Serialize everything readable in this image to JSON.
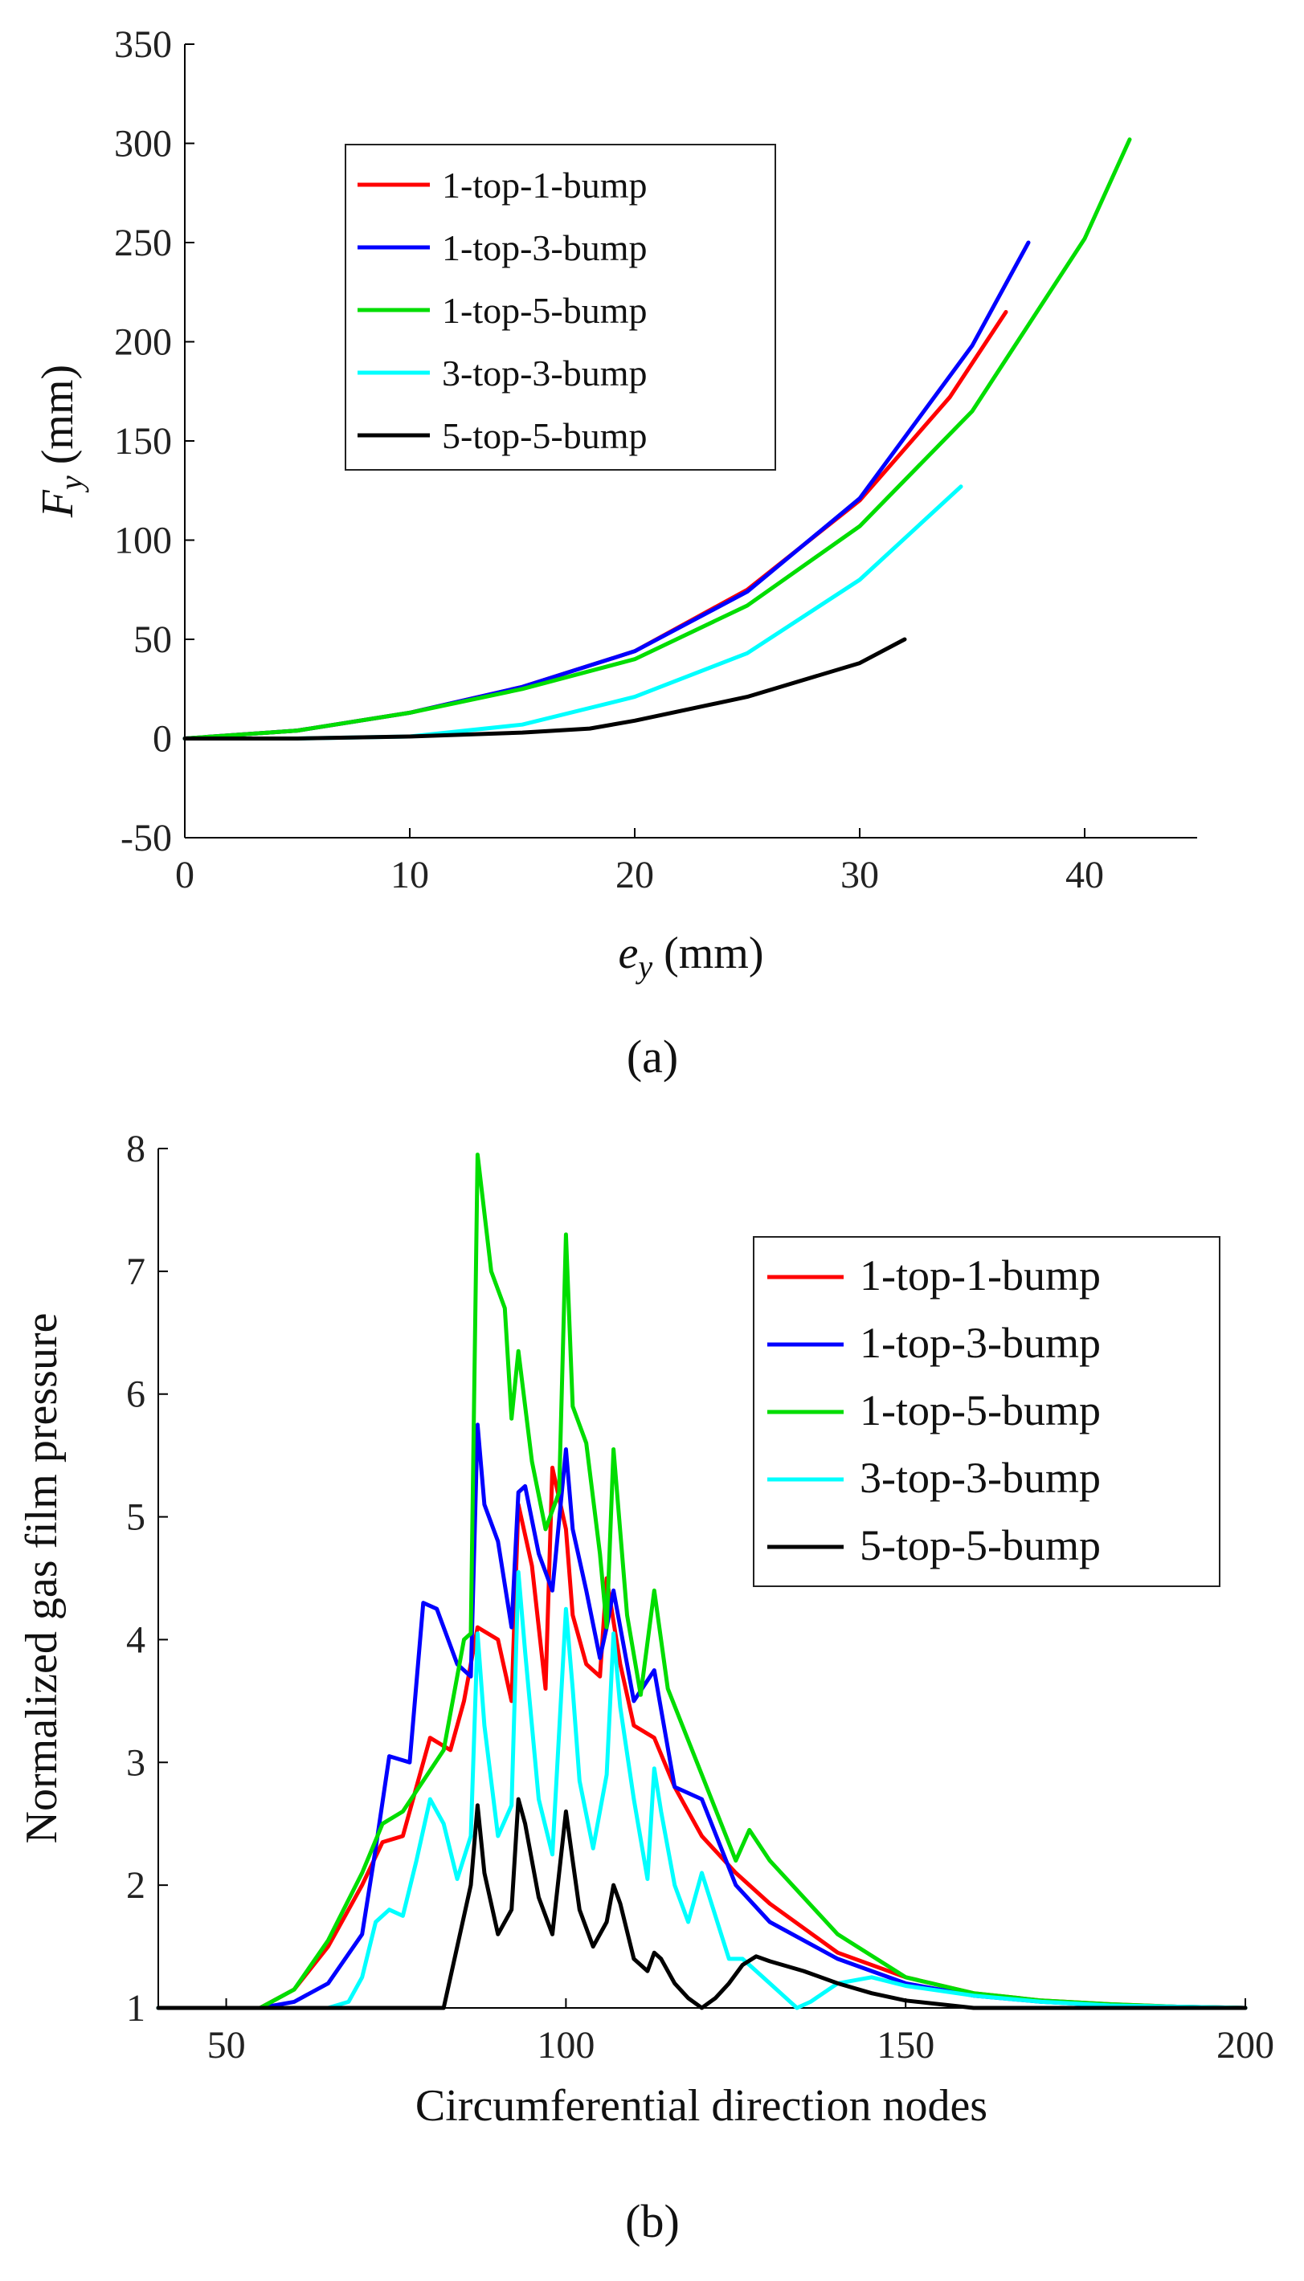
{
  "chart_data": [
    {
      "panel_label": "(a)",
      "type": "line",
      "title": "",
      "xlabel": {
        "main": "e",
        "sub": "y",
        "unit": " (mm)"
      },
      "ylabel": {
        "main": "F",
        "sub": "y",
        "unit": " (mm)"
      },
      "xlim": [
        0,
        45
      ],
      "ylim": [
        -50,
        350
      ],
      "xticks": [
        "0",
        "10",
        "20",
        "30",
        "40"
      ],
      "xtick_values": [
        0,
        10,
        20,
        30,
        40
      ],
      "yticks": [
        "-50",
        "0",
        "50",
        "100",
        "150",
        "200",
        "250",
        "300",
        "350"
      ],
      "ytick_values": [
        -50,
        0,
        50,
        100,
        150,
        200,
        250,
        300,
        350
      ],
      "grid": false,
      "legend_position": "top-left",
      "series": [
        {
          "name": "1-top-1-bump",
          "color": "#ff0000",
          "x": [
            0,
            5,
            10,
            15,
            20,
            25,
            30,
            34,
            36.5
          ],
          "y": [
            0,
            4,
            13,
            26,
            44,
            75,
            120,
            172,
            215
          ]
        },
        {
          "name": "1-top-3-bump",
          "color": "#0000ff",
          "x": [
            0,
            5,
            10,
            15,
            20,
            25,
            30,
            35,
            37.5
          ],
          "y": [
            0,
            4,
            13,
            26,
            44,
            74,
            121,
            198,
            250
          ]
        },
        {
          "name": "1-top-5-bump",
          "color": "#00dd00",
          "x": [
            0,
            5,
            10,
            15,
            20,
            25,
            30,
            35,
            40,
            42
          ],
          "y": [
            0,
            4,
            13,
            25,
            40,
            67,
            107,
            165,
            252,
            302
          ]
        },
        {
          "name": "3-top-3-bump",
          "color": "#00ffff",
          "x": [
            0,
            5,
            10,
            15,
            20,
            25,
            30,
            34.5
          ],
          "y": [
            0,
            0,
            1,
            7,
            21,
            43,
            80,
            127
          ]
        },
        {
          "name": "5-top-5-bump",
          "color": "#000000",
          "x": [
            0,
            5,
            10,
            15,
            18,
            20,
            25,
            30,
            32
          ],
          "y": [
            0,
            0,
            1,
            3,
            5,
            9,
            21,
            38,
            50
          ]
        }
      ]
    },
    {
      "panel_label": "(b)",
      "type": "line",
      "title": "",
      "xlabel": "Circumferential direction nodes",
      "ylabel": "Normalized gas film pressure",
      "xlim": [
        40,
        200
      ],
      "ylim": [
        1,
        8
      ],
      "xticks": [
        "50",
        "100",
        "150",
        "200"
      ],
      "xtick_values": [
        50,
        100,
        150,
        200
      ],
      "yticks": [
        "1",
        "2",
        "3",
        "4",
        "5",
        "6",
        "7",
        "8"
      ],
      "ytick_values": [
        1,
        2,
        3,
        4,
        5,
        6,
        7,
        8
      ],
      "grid": false,
      "legend_position": "top-right",
      "series": [
        {
          "name": "1-top-1-bump",
          "color": "#ff0000",
          "x": [
            40,
            55,
            60,
            65,
            70,
            73,
            76,
            78,
            80,
            83,
            85,
            87,
            90,
            92,
            93,
            95,
            97,
            98,
            100,
            101,
            103,
            105,
            106,
            108,
            110,
            113,
            116,
            120,
            125,
            130,
            140,
            150,
            160,
            170,
            180,
            190,
            200
          ],
          "y": [
            1,
            1,
            1.15,
            1.5,
            2.0,
            2.35,
            2.4,
            2.8,
            3.2,
            3.1,
            3.5,
            4.1,
            4.0,
            3.5,
            5.1,
            4.6,
            3.6,
            5.4,
            4.9,
            4.2,
            3.8,
            3.7,
            4.5,
            3.8,
            3.3,
            3.2,
            2.8,
            2.4,
            2.1,
            1.85,
            1.45,
            1.25,
            1.12,
            1.06,
            1.03,
            1.01,
            1.0
          ]
        },
        {
          "name": "1-top-3-bump",
          "color": "#0000ff",
          "x": [
            40,
            55,
            60,
            65,
            70,
            72,
            74,
            77,
            79,
            81,
            84,
            86,
            87,
            88,
            90,
            92,
            93,
            94,
            96,
            98,
            100,
            101,
            103,
            105,
            106,
            107,
            110,
            113,
            116,
            120,
            125,
            130,
            140,
            150,
            160,
            170,
            180,
            190,
            200
          ],
          "y": [
            1,
            1,
            1.05,
            1.2,
            1.6,
            2.3,
            3.05,
            3.0,
            4.3,
            4.25,
            3.8,
            3.7,
            5.75,
            5.1,
            4.8,
            4.1,
            5.2,
            5.25,
            4.7,
            4.4,
            5.55,
            4.9,
            4.4,
            3.85,
            4.1,
            4.4,
            3.5,
            3.75,
            2.8,
            2.7,
            2.0,
            1.7,
            1.4,
            1.2,
            1.1,
            1.05,
            1.02,
            1.01,
            1.0
          ]
        },
        {
          "name": "1-top-5-bump",
          "color": "#00dd00",
          "x": [
            40,
            55,
            60,
            65,
            70,
            73,
            76,
            79,
            82,
            85,
            86,
            87,
            89,
            91,
            92,
            93,
            95,
            97,
            99,
            100,
            101,
            103,
            105,
            106,
            107,
            109,
            111,
            113,
            115,
            120,
            125,
            127,
            130,
            140,
            150,
            160,
            170,
            180,
            190,
            200
          ],
          "y": [
            1,
            1,
            1.15,
            1.55,
            2.1,
            2.5,
            2.6,
            2.85,
            3.1,
            4.0,
            4.05,
            7.95,
            7.0,
            6.7,
            5.8,
            6.35,
            5.45,
            4.9,
            5.2,
            7.3,
            5.9,
            5.6,
            4.7,
            4.1,
            5.55,
            4.2,
            3.55,
            4.4,
            3.6,
            2.9,
            2.2,
            2.45,
            2.2,
            1.6,
            1.25,
            1.12,
            1.06,
            1.03,
            1.01,
            1.0
          ]
        },
        {
          "name": "3-top-3-bump",
          "color": "#00ffff",
          "x": [
            40,
            65,
            68,
            70,
            72,
            74,
            76,
            78,
            80,
            82,
            84,
            86,
            87,
            88,
            90,
            92,
            93,
            94,
            96,
            98,
            100,
            101,
            102,
            104,
            106,
            107,
            108,
            110,
            112,
            113,
            114,
            116,
            118,
            120,
            122,
            124,
            126,
            128,
            130,
            132,
            134,
            136,
            140,
            145,
            150,
            160,
            170,
            180,
            190,
            200
          ],
          "y": [
            1,
            1,
            1.05,
            1.25,
            1.7,
            1.8,
            1.75,
            2.2,
            2.7,
            2.5,
            2.05,
            2.4,
            4.05,
            3.3,
            2.4,
            2.65,
            4.55,
            3.9,
            2.7,
            2.25,
            4.25,
            3.6,
            2.85,
            2.3,
            2.9,
            4.05,
            3.45,
            2.7,
            2.05,
            2.95,
            2.6,
            2.0,
            1.7,
            2.1,
            1.75,
            1.4,
            1.4,
            1.3,
            1.2,
            1.1,
            1.0,
            1.05,
            1.2,
            1.25,
            1.18,
            1.1,
            1.05,
            1.02,
            1.01,
            1.0
          ]
        },
        {
          "name": "5-top-5-bump",
          "color": "#000000",
          "x": [
            40,
            82,
            84,
            86,
            87,
            88,
            90,
            92,
            93,
            94,
            96,
            98,
            100,
            101,
            102,
            104,
            106,
            107,
            108,
            110,
            112,
            113,
            114,
            116,
            118,
            120,
            122,
            124,
            126,
            128,
            130,
            135,
            140,
            145,
            150,
            160,
            170,
            180,
            190,
            200
          ],
          "y": [
            1,
            1,
            1.5,
            2.0,
            2.65,
            2.1,
            1.6,
            1.8,
            2.7,
            2.5,
            1.9,
            1.6,
            2.6,
            2.2,
            1.8,
            1.5,
            1.7,
            2.0,
            1.85,
            1.4,
            1.3,
            1.45,
            1.4,
            1.2,
            1.08,
            1.0,
            1.08,
            1.2,
            1.35,
            1.42,
            1.38,
            1.3,
            1.2,
            1.12,
            1.06,
            1.0,
            1.0,
            1.0,
            1.0,
            1.0
          ]
        }
      ]
    }
  ]
}
